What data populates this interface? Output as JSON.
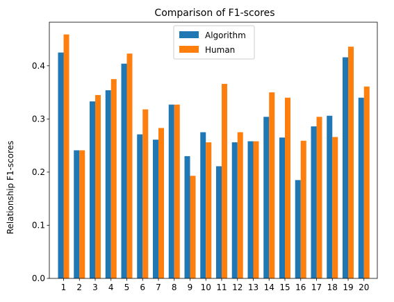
{
  "chart_data": {
    "type": "bar",
    "title": "Comparison of F1-scores",
    "xlabel": "",
    "ylabel": "Relationship F1-scores",
    "categories": [
      "1",
      "2",
      "3",
      "4",
      "5",
      "6",
      "7",
      "8",
      "9",
      "10",
      "11",
      "12",
      "13",
      "14",
      "15",
      "16",
      "17",
      "18",
      "19",
      "20"
    ],
    "series": [
      {
        "name": "Algorithm",
        "color": "#1f77b4",
        "values": [
          0.425,
          0.241,
          0.333,
          0.354,
          0.404,
          0.271,
          0.261,
          0.327,
          0.23,
          0.275,
          0.211,
          0.256,
          0.258,
          0.304,
          0.265,
          0.185,
          0.286,
          0.306,
          0.416,
          0.34
        ]
      },
      {
        "name": "Human",
        "color": "#ff7f0e",
        "values": [
          0.459,
          0.241,
          0.345,
          0.375,
          0.423,
          0.318,
          0.283,
          0.327,
          0.193,
          0.256,
          0.366,
          0.275,
          0.258,
          0.35,
          0.34,
          0.259,
          0.304,
          0.266,
          0.436,
          0.361
        ]
      }
    ],
    "yticks": [
      0.0,
      0.1,
      0.2,
      0.3,
      0.4
    ],
    "ytick_labels": [
      "0.0",
      "0.1",
      "0.2",
      "0.3",
      "0.4"
    ],
    "ylim": [
      0,
      0.482
    ],
    "grid": false,
    "legend_position": "top-center"
  }
}
